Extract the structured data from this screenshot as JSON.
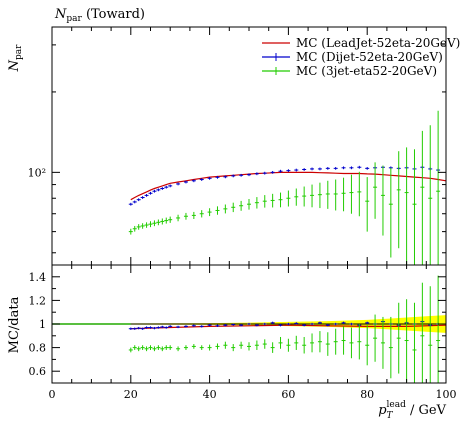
{
  "chart_data": [
    {
      "panel": "main",
      "type": "scatter",
      "title": "N_par (Toward)",
      "ylabel": "N_par",
      "xlim": [
        0,
        100
      ],
      "ylim": [
        45,
        350
      ],
      "yscale": "log",
      "y_ticks": [
        {
          "value": 100,
          "label": "10²"
        }
      ],
      "legend_position": "top-right",
      "series": [
        {
          "name": "MC (LeadJet-52eta-20GeV)",
          "color": "#cc0000",
          "style": "line",
          "x": [
            20,
            21,
            22,
            23,
            24,
            25,
            26,
            27,
            28,
            29,
            30,
            32,
            34,
            36,
            38,
            40,
            42,
            44,
            46,
            48,
            50,
            52,
            54,
            56,
            58,
            60,
            62,
            64,
            66,
            68,
            70,
            72,
            74,
            76,
            78,
            80,
            82,
            84,
            86,
            88,
            90,
            92,
            94,
            96,
            98,
            100
          ],
          "y": [
            79,
            80.5,
            82,
            83.2,
            84.5,
            85.8,
            87,
            88,
            89,
            90,
            91,
            92,
            93,
            94,
            95,
            96,
            96.5,
            97,
            97.5,
            98,
            98.5,
            99,
            99.3,
            99.6,
            100,
            100,
            100,
            100,
            100,
            99.7,
            99.5,
            99.3,
            99,
            99,
            99,
            98.7,
            98.5,
            98,
            97.5,
            97,
            96.5,
            96,
            95.5,
            95,
            94,
            93
          ]
        },
        {
          "name": "MC (Dijet-52eta-20GeV)",
          "color": "#0000cc",
          "style": "markers",
          "x": [
            20,
            21,
            22,
            23,
            24,
            25,
            26,
            27,
            28,
            29,
            30,
            32,
            34,
            36,
            38,
            40,
            42,
            44,
            46,
            48,
            50,
            52,
            54,
            56,
            58,
            60,
            62,
            64,
            66,
            68,
            70,
            72,
            74,
            76,
            78,
            80,
            82,
            84,
            86,
            88,
            90,
            92,
            94,
            96,
            98
          ],
          "y": [
            76,
            77.5,
            79,
            80.5,
            82,
            83.5,
            85,
            86,
            87,
            88,
            89,
            90.5,
            92,
            93,
            94,
            95,
            95.8,
            96.2,
            97,
            97.5,
            98,
            98.8,
            99.3,
            100,
            101,
            101.5,
            102,
            102.5,
            103,
            103,
            103.5,
            103.5,
            104,
            104,
            104.5,
            103.5,
            104,
            104.5,
            104,
            103.5,
            104,
            103,
            104.5,
            103,
            102
          ]
        },
        {
          "name": "MC (3jet-eta52-20GeV)",
          "color": "#22cc00",
          "style": "markers",
          "x": [
            20,
            21,
            22,
            23,
            24,
            25,
            26,
            27,
            28,
            29,
            30,
            32,
            34,
            36,
            38,
            40,
            42,
            44,
            46,
            48,
            50,
            52,
            54,
            56,
            58,
            60,
            62,
            64,
            66,
            68,
            70,
            72,
            74,
            76,
            78,
            80,
            82,
            84,
            86,
            88,
            90,
            92,
            94,
            96,
            98
          ],
          "y": [
            60,
            61.5,
            62.5,
            63,
            63.5,
            64,
            64.5,
            65,
            65.5,
            66,
            66.5,
            67.5,
            68.5,
            69,
            70,
            71,
            72,
            73,
            74,
            75,
            76,
            77,
            78,
            78.5,
            79,
            80,
            81,
            81.5,
            82,
            82.5,
            83,
            83,
            83.5,
            84,
            84.5,
            78,
            88,
            82,
            76,
            86,
            84,
            76,
            88,
            80,
            85
          ],
          "err": [
            1.5,
            1.5,
            1.5,
            1.5,
            1.5,
            1.6,
            1.6,
            1.6,
            1.7,
            1.7,
            1.8,
            1.9,
            2,
            2.1,
            2.2,
            2.4,
            2.6,
            2.8,
            3,
            3.2,
            3.5,
            3.8,
            4.2,
            4.6,
            5,
            5.5,
            6,
            7,
            8,
            9,
            10,
            11,
            12,
            14,
            16,
            18,
            21,
            24,
            28,
            34,
            40,
            46,
            55,
            70,
            85
          ]
        }
      ]
    },
    {
      "panel": "ratio",
      "type": "scatter",
      "ylabel": "MC/data",
      "xlabel": "p_T^lead / GeV",
      "xlim": [
        0,
        100
      ],
      "ylim": [
        0.5,
        1.5
      ],
      "x_ticks": [
        0,
        20,
        40,
        60,
        80,
        100
      ],
      "y_ticks": [
        0.6,
        0.8,
        1,
        1.2,
        1.4
      ],
      "band_color": "#ffff00",
      "series": [
        {
          "name": "MC (LeadJet-52eta-20GeV)",
          "color": "#cc0000",
          "style": "line",
          "x": [
            20,
            25,
            30,
            40,
            50,
            60,
            70,
            80,
            90,
            100
          ],
          "y": [
            0.96,
            0.965,
            0.97,
            0.98,
            0.985,
            0.99,
            0.985,
            0.98,
            0.98,
            0.99
          ]
        },
        {
          "name": "MC (Dijet-52eta-20GeV)",
          "color": "#0000cc",
          "style": "markers",
          "x": [
            20,
            21,
            22,
            23,
            24,
            25,
            26,
            27,
            28,
            29,
            30,
            32,
            34,
            36,
            38,
            40,
            42,
            44,
            46,
            48,
            50,
            52,
            54,
            56,
            58,
            60,
            62,
            64,
            66,
            68,
            70,
            72,
            74,
            76,
            78,
            80,
            82,
            84,
            86,
            88,
            90,
            92,
            94,
            96,
            98
          ],
          "y": [
            0.96,
            0.96,
            0.965,
            0.96,
            0.97,
            0.97,
            0.965,
            0.97,
            0.975,
            0.97,
            0.98,
            0.975,
            0.98,
            0.985,
            0.98,
            0.99,
            0.985,
            0.99,
            0.995,
            0.99,
            1,
            0.99,
            1,
            1.01,
            0.99,
            1,
            1.005,
            0.99,
            1,
            1.01,
            0.99,
            1,
            1.01,
            1,
            0.99,
            1.01,
            1,
            1.02,
            1,
            0.99,
            1.01,
            1,
            1.02,
            0.99,
            1
          ]
        },
        {
          "name": "MC (3jet-eta52-20GeV)",
          "color": "#22cc00",
          "style": "markers",
          "x": [
            20,
            21,
            22,
            23,
            24,
            25,
            26,
            27,
            28,
            29,
            30,
            32,
            34,
            36,
            38,
            40,
            42,
            44,
            46,
            48,
            50,
            52,
            54,
            56,
            58,
            60,
            62,
            64,
            66,
            68,
            70,
            72,
            74,
            76,
            78,
            80,
            82,
            84,
            86,
            88,
            90,
            92,
            94,
            96,
            98
          ],
          "y": [
            0.78,
            0.8,
            0.79,
            0.8,
            0.79,
            0.8,
            0.79,
            0.8,
            0.79,
            0.8,
            0.8,
            0.79,
            0.8,
            0.81,
            0.8,
            0.8,
            0.81,
            0.82,
            0.8,
            0.82,
            0.81,
            0.82,
            0.83,
            0.8,
            0.84,
            0.82,
            0.84,
            0.82,
            0.84,
            0.85,
            0.83,
            0.85,
            0.86,
            0.84,
            0.85,
            0.82,
            0.88,
            0.84,
            0.8,
            0.88,
            0.86,
            0.78,
            0.9,
            0.82,
            0.86
          ],
          "err": [
            0.02,
            0.02,
            0.02,
            0.02,
            0.02,
            0.02,
            0.02,
            0.02,
            0.02,
            0.02,
            0.02,
            0.02,
            0.02,
            0.02,
            0.02,
            0.025,
            0.025,
            0.03,
            0.03,
            0.03,
            0.035,
            0.04,
            0.04,
            0.045,
            0.05,
            0.055,
            0.06,
            0.07,
            0.08,
            0.09,
            0.1,
            0.11,
            0.12,
            0.13,
            0.15,
            0.17,
            0.2,
            0.22,
            0.26,
            0.3,
            0.35,
            0.4,
            0.45,
            0.5,
            0.55
          ]
        }
      ]
    }
  ]
}
